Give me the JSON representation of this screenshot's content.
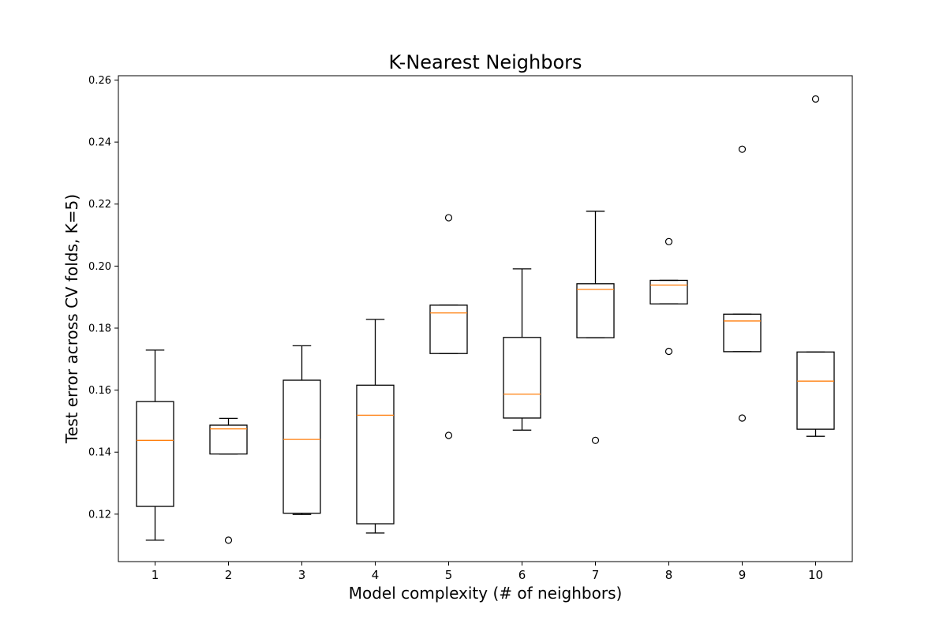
{
  "chart_data": {
    "type": "box",
    "title": "K-Nearest Neighbors",
    "xlabel": "Model complexity (# of neighbors)",
    "ylabel": "Test error across CV folds, K=5)",
    "categories": [
      "1",
      "2",
      "3",
      "4",
      "5",
      "6",
      "7",
      "8",
      "9",
      "10"
    ],
    "ylim": [
      0.1047,
      0.2614
    ],
    "yticks": [
      "0.12",
      "0.14",
      "0.16",
      "0.18",
      "0.20",
      "0.22",
      "0.24",
      "0.26"
    ],
    "grid": false,
    "colors": {
      "box": "#000000",
      "median": "#ff7f0e",
      "outlier": "#000000"
    },
    "boxes": [
      {
        "category": "1",
        "whisker_low": 0.1116,
        "q1": 0.1225,
        "median": 0.1438,
        "q3": 0.1563,
        "whisker_high": 0.1729,
        "outliers": []
      },
      {
        "category": "2",
        "whisker_low": 0.1394,
        "q1": 0.1394,
        "median": 0.1475,
        "q3": 0.1487,
        "whisker_high": 0.1509,
        "outliers": [
          0.1116
        ]
      },
      {
        "category": "3",
        "whisker_low": 0.1199,
        "q1": 0.1203,
        "median": 0.1441,
        "q3": 0.1632,
        "whisker_high": 0.1743,
        "outliers": []
      },
      {
        "category": "4",
        "whisker_low": 0.1139,
        "q1": 0.1169,
        "median": 0.1519,
        "q3": 0.1616,
        "whisker_high": 0.1828,
        "outliers": []
      },
      {
        "category": "5",
        "whisker_low": 0.1718,
        "q1": 0.1718,
        "median": 0.1849,
        "q3": 0.1874,
        "whisker_high": 0.1874,
        "outliers": [
          0.1454,
          0.2156
        ]
      },
      {
        "category": "6",
        "whisker_low": 0.1471,
        "q1": 0.151,
        "median": 0.1587,
        "q3": 0.177,
        "whisker_high": 0.1991,
        "outliers": []
      },
      {
        "category": "7",
        "whisker_low": 0.1769,
        "q1": 0.1769,
        "median": 0.1925,
        "q3": 0.1943,
        "whisker_high": 0.2177,
        "outliers": [
          0.1438
        ]
      },
      {
        "category": "8",
        "whisker_low": 0.1878,
        "q1": 0.1878,
        "median": 0.1939,
        "q3": 0.1954,
        "whisker_high": 0.1954,
        "outliers": [
          0.1725,
          0.2079
        ]
      },
      {
        "category": "9",
        "whisker_low": 0.1724,
        "q1": 0.1724,
        "median": 0.1823,
        "q3": 0.1845,
        "whisker_high": 0.1845,
        "outliers": [
          0.151,
          0.2377
        ]
      },
      {
        "category": "10",
        "whisker_low": 0.1451,
        "q1": 0.1474,
        "median": 0.1629,
        "q3": 0.1723,
        "whisker_high": 0.1723,
        "outliers": [
          0.2539
        ]
      }
    ]
  }
}
